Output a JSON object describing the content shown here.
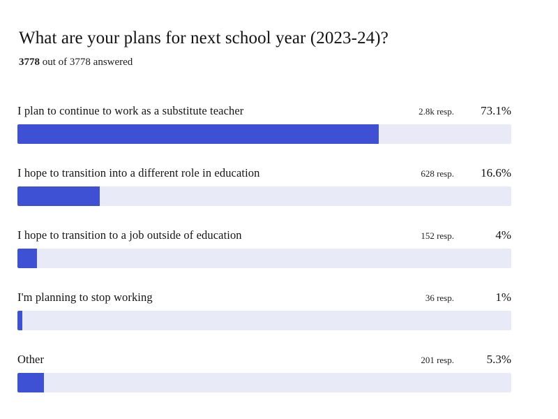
{
  "title": "What are your plans for next school year (2023-24)?",
  "answered": {
    "count_bold": "3778",
    "rest": " out of 3778 answered"
  },
  "colors": {
    "bar_fill": "#3e50d4",
    "bar_track": "#e9eaf8",
    "text": "#141414",
    "background": "#ffffff"
  },
  "chart_data": {
    "type": "bar",
    "orientation": "horizontal",
    "title": "What are your plans for next school year (2023-24)?",
    "subtitle": "3778 out of 3778 answered",
    "categories": [
      "I plan to continue to work as a substitute teacher",
      "I hope to transition into a different role in education",
      "I hope to transition to a job outside of education",
      "I'm planning to stop working",
      "Other"
    ],
    "values": [
      73.1,
      16.6,
      4,
      1,
      5.3
    ],
    "value_labels": [
      "73.1%",
      "16.6%",
      "4%",
      "1%",
      "5.3%"
    ],
    "response_labels": [
      "2.8k resp.",
      "628 resp.",
      "152 resp.",
      "36 resp.",
      "201 resp."
    ],
    "xlim": [
      0,
      100
    ],
    "grid": false,
    "legend": false
  }
}
